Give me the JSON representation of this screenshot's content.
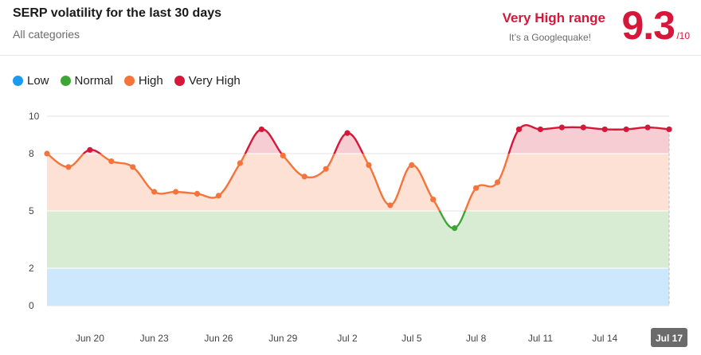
{
  "header": {
    "title": "SERP volatility for the last 30 days",
    "subtitle": "All categories"
  },
  "score_panel": {
    "range_label": "Very High range",
    "range_sub": "It’s a Googlequake!",
    "score": "9.3",
    "score_max": "/10"
  },
  "legend": [
    {
      "label": "Low",
      "color": "#1a9bf0"
    },
    {
      "label": "Normal",
      "color": "#3da533"
    },
    {
      "label": "High",
      "color": "#f4743b"
    },
    {
      "label": "Very High",
      "color": "#d6173a"
    }
  ],
  "colors": {
    "low_band": "#cde8fc",
    "normal_band": "#d8ecd3",
    "high_band": "#fde1d4",
    "very_high_band": "#f5cdd3",
    "low_line": "#1a9bf0",
    "normal_line": "#3da533",
    "high_line": "#f4743b",
    "very_high_line": "#d6173a",
    "selected_tick_bg": "#6b6b6b"
  },
  "chart_data": {
    "type": "line",
    "x": [
      "Jun 18",
      "Jun 19",
      "Jun 20",
      "Jun 21",
      "Jun 22",
      "Jun 23",
      "Jun 24",
      "Jun 25",
      "Jun 26",
      "Jun 27",
      "Jun 28",
      "Jun 29",
      "Jun 30",
      "Jul 1",
      "Jul 2",
      "Jul 3",
      "Jul 4",
      "Jul 5",
      "Jul 6",
      "Jul 7",
      "Jul 8",
      "Jul 9",
      "Jul 10",
      "Jul 11",
      "Jul 12",
      "Jul 13",
      "Jul 14",
      "Jul 15",
      "Jul 16",
      "Jul 17"
    ],
    "values": [
      8.0,
      7.3,
      8.2,
      7.6,
      7.3,
      6.0,
      6.0,
      5.9,
      5.8,
      7.5,
      9.3,
      7.9,
      6.8,
      7.2,
      9.1,
      7.4,
      5.3,
      7.4,
      5.6,
      4.1,
      6.2,
      6.5,
      9.3,
      9.3,
      9.4,
      9.4,
      9.3,
      9.3,
      9.4,
      9.3
    ],
    "y_ticks": [
      0,
      2,
      5,
      8,
      10
    ],
    "ylim": [
      0,
      10
    ],
    "x_tick_labels": [
      "Jun 20",
      "Jun 23",
      "Jun 26",
      "Jun 29",
      "Jul 2",
      "Jul 5",
      "Jul 8",
      "Jul 11",
      "Jul 14",
      "Jul 17"
    ],
    "selected_tick": "Jul 17",
    "bands": [
      {
        "name": "Low",
        "from": 0,
        "to": 2
      },
      {
        "name": "Normal",
        "from": 2,
        "to": 5
      },
      {
        "name": "High",
        "from": 5,
        "to": 8
      },
      {
        "name": "Very High",
        "from": 8,
        "to": 10
      }
    ],
    "grid": "horizontal",
    "legend_position": "top-left"
  }
}
